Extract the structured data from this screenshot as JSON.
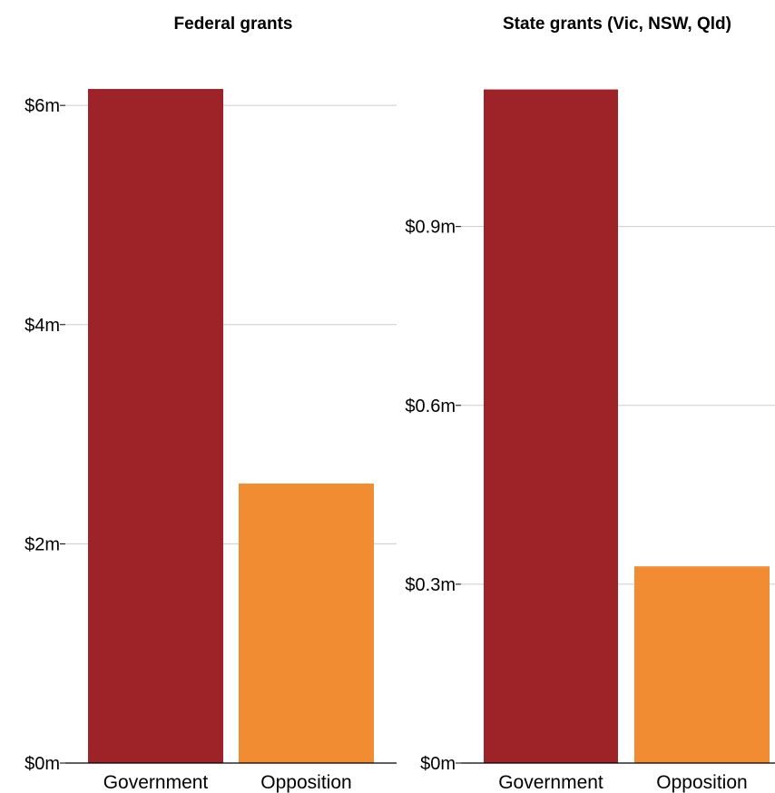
{
  "colors": {
    "government": "#9e2328",
    "opposition": "#f28c33",
    "grid": "#cccccc"
  },
  "chart_data": [
    {
      "type": "bar",
      "title": "Federal grants",
      "xlabel": "",
      "ylabel": "",
      "categories": [
        "Government",
        "Opposition"
      ],
      "values": [
        6.15,
        2.55
      ],
      "unit": "m",
      "ylim": [
        0,
        6.2
      ],
      "yticks": [
        0,
        2,
        4,
        6
      ],
      "ytick_labels": [
        "$0m",
        "$2m",
        "$4m",
        "$6m"
      ],
      "grid": true,
      "legend": "none"
    },
    {
      "type": "bar",
      "title": "State grants (Vic, NSW, Qld)",
      "xlabel": "",
      "ylabel": "",
      "categories": [
        "Government",
        "Opposition"
      ],
      "values": [
        1.13,
        0.33
      ],
      "unit": "m",
      "ylim": [
        0,
        1.14
      ],
      "yticks": [
        0,
        0.3,
        0.6,
        0.9
      ],
      "ytick_labels": [
        "$0m",
        "$0.3m",
        "$0.6m",
        "$0.9m"
      ],
      "grid": true,
      "legend": "none"
    }
  ]
}
